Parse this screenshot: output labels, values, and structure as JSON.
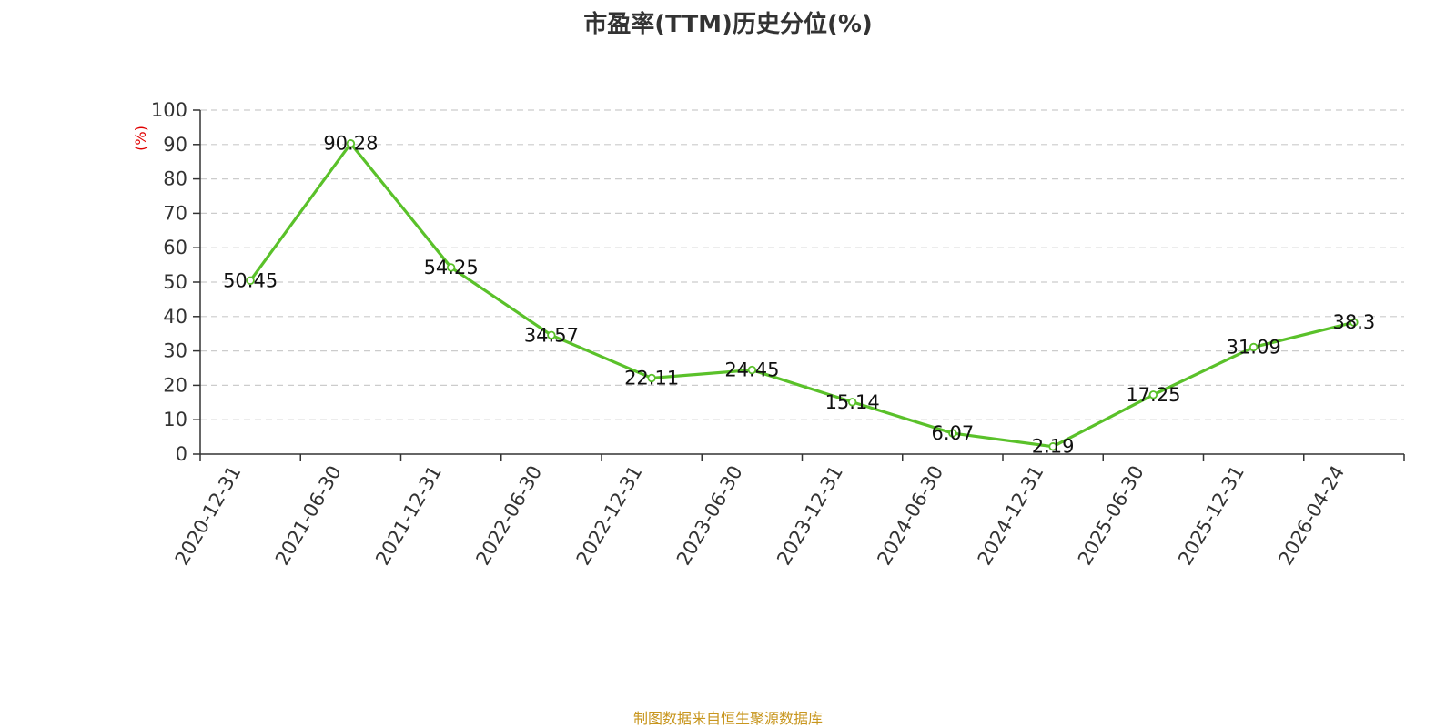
{
  "chart_data": {
    "type": "line",
    "title": "市盈率(TTM)历史分位(%)",
    "xlabel": "",
    "ylabel": "(%)",
    "categories": [
      "2020-12-31",
      "2021-06-30",
      "2021-12-31",
      "2022-06-30",
      "2022-12-31",
      "2023-06-30",
      "2023-12-31",
      "2024-06-30",
      "2024-12-31",
      "2025-06-30",
      "2025-12-31",
      "2026-04-24"
    ],
    "series": [
      {
        "values": [
          50.45,
          90.28,
          54.25,
          34.57,
          22.11,
          24.45,
          15.14,
          6.07,
          2.19,
          17.25,
          31.09,
          38.3
        ],
        "labels": [
          "50.45",
          "90.28",
          "54.25",
          "34.57",
          "22.11",
          "24.45",
          "15.14",
          "6.07",
          "2.19",
          "17.25",
          "31.09",
          "38.3"
        ],
        "color": "#5ac12a"
      }
    ],
    "ylim": [
      0,
      100
    ],
    "yticks": [
      "0",
      "10",
      "20",
      "30",
      "40",
      "50",
      "60",
      "70",
      "80",
      "90",
      "100"
    ],
    "grid": true,
    "legend": "none"
  },
  "footer": {
    "source": "制图数据来自恒生聚源数据库"
  }
}
